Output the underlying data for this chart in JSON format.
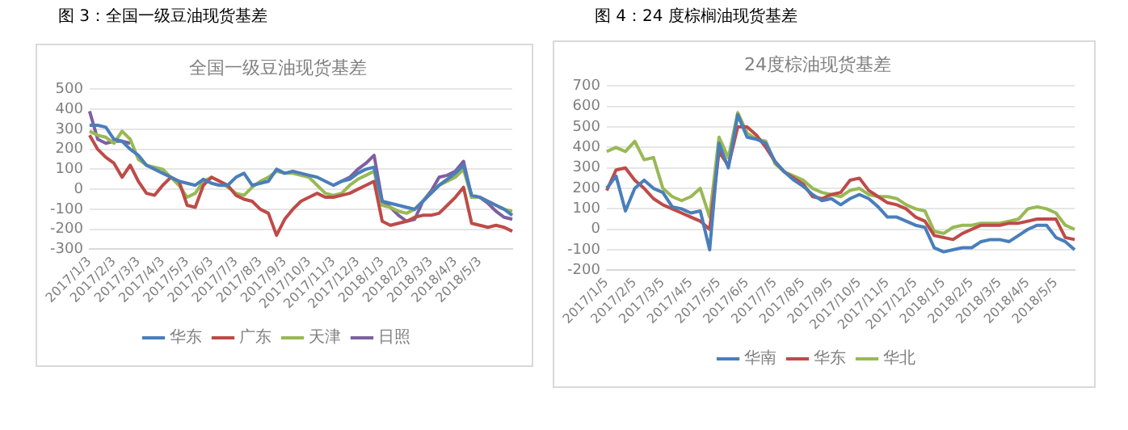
{
  "chart_data": [
    {
      "type": "line",
      "title": "全国一级豆油现货基差",
      "annotations": [
        "图 3：全国一级豆油现货基差"
      ],
      "categories": [
        "2017/1/3",
        null,
        null,
        "2017/2/3",
        null,
        null,
        "2017/3/3",
        null,
        null,
        "2017/4/3",
        null,
        null,
        "2017/5/3",
        null,
        null,
        "2017/6/3",
        null,
        null,
        "2017/7/3",
        null,
        null,
        "2017/8/3",
        null,
        null,
        "2017/9/3",
        null,
        null,
        "2017/10/3",
        null,
        null,
        "2017/11/3",
        null,
        null,
        "2017/12/3",
        null,
        null,
        "2018/1/3",
        null,
        null,
        "2018/2/3",
        null,
        null,
        "2018/3/3",
        null,
        null,
        "2018/4/3",
        null,
        null,
        "2018/5/3",
        null,
        null,
        null,
        null
      ],
      "series": [
        {
          "name": "华东",
          "color": "#4a7ebb",
          "values": [
            320,
            320,
            310,
            250,
            240,
            200,
            170,
            120,
            100,
            80,
            60,
            40,
            30,
            20,
            50,
            30,
            20,
            20,
            60,
            80,
            20,
            30,
            40,
            100,
            80,
            90,
            80,
            70,
            60,
            40,
            20,
            40,
            50,
            80,
            100,
            110,
            -60,
            -70,
            -80,
            -90,
            -100,
            -60,
            -20,
            20,
            50,
            80,
            120,
            -30,
            -40,
            -60,
            -80,
            -100,
            -130
          ]
        },
        {
          "name": "广东",
          "color": "#be4b48",
          "values": [
            270,
            200,
            160,
            130,
            60,
            120,
            40,
            -20,
            -30,
            20,
            60,
            40,
            -80,
            -90,
            20,
            60,
            40,
            20,
            -30,
            -50,
            -60,
            -100,
            -120,
            -230,
            -150,
            -100,
            -60,
            -40,
            -20,
            -40,
            -40,
            -30,
            -20,
            0,
            20,
            40,
            -160,
            -180,
            -170,
            -160,
            -140,
            -130,
            -130,
            -120,
            -80,
            -40,
            10,
            -170,
            -180,
            -190,
            -180,
            -190,
            -210
          ]
        },
        {
          "name": "天津",
          "color": "#98b954",
          "values": [
            290,
            270,
            260,
            230,
            290,
            250,
            150,
            120,
            110,
            100,
            60,
            20,
            -40,
            -20,
            40,
            60,
            40,
            10,
            -20,
            -30,
            10,
            40,
            60,
            90,
            80,
            80,
            70,
            60,
            20,
            -20,
            -30,
            -20,
            20,
            50,
            70,
            90,
            -80,
            -90,
            -110,
            -120,
            -100,
            -60,
            -20,
            20,
            40,
            60,
            100,
            -40,
            -40,
            -60,
            -80,
            -100,
            -110
          ]
        },
        {
          "name": "日照",
          "color": "#7d60a0",
          "values": [
            390,
            250,
            230,
            240,
            240,
            230,
            null,
            null,
            null,
            null,
            null,
            null,
            null,
            null,
            null,
            null,
            null,
            null,
            null,
            null,
            null,
            null,
            null,
            null,
            null,
            null,
            null,
            null,
            null,
            null,
            20,
            40,
            60,
            100,
            130,
            170,
            -60,
            -90,
            -130,
            -160,
            -150,
            -60,
            -10,
            60,
            70,
            90,
            140,
            -40,
            -40,
            -70,
            -110,
            -140,
            -150
          ]
        }
      ],
      "ylim": [
        -300,
        500
      ],
      "yticks": [
        -300,
        -200,
        -100,
        0,
        100,
        200,
        300,
        400,
        500
      ],
      "grid": "y",
      "legend": "bottom",
      "marker": "none"
    },
    {
      "type": "line",
      "title": "24度棕油现货基差",
      "annotations": [
        "图 4：24 度棕榈油现货基差"
      ],
      "categories": [
        "2017/1/5",
        null,
        null,
        "2017/2/5",
        null,
        null,
        "2017/3/5",
        null,
        null,
        "2017/4/5",
        null,
        null,
        "2017/5/5",
        null,
        null,
        "2017/6/5",
        null,
        null,
        "2017/7/5",
        null,
        null,
        "2017/8/5",
        null,
        null,
        "2017/9/5",
        null,
        null,
        "2017/10/5",
        null,
        null,
        "2017/11/5",
        null,
        null,
        "2017/12/5",
        null,
        null,
        "2018/1/5",
        null,
        null,
        "2018/2/5",
        null,
        null,
        "2018/3/5",
        null,
        null,
        "2018/4/5",
        null,
        null,
        "2018/5/5",
        null,
        null
      ],
      "series": [
        {
          "name": "华南",
          "color": "#4a7ebb",
          "values": [
            200,
            260,
            90,
            200,
            240,
            200,
            180,
            110,
            100,
            80,
            90,
            -100,
            420,
            300,
            560,
            450,
            440,
            420,
            330,
            280,
            240,
            210,
            170,
            140,
            150,
            120,
            150,
            170,
            150,
            110,
            60,
            60,
            40,
            20,
            10,
            -90,
            -110,
            -100,
            -90,
            -90,
            -60,
            -50,
            -50,
            -60,
            -30,
            0,
            20,
            20,
            -40,
            -60,
            -100
          ]
        },
        {
          "name": "华东",
          "color": "#be4b48",
          "values": [
            190,
            290,
            300,
            240,
            200,
            150,
            120,
            100,
            80,
            60,
            40,
            0,
            380,
            310,
            500,
            500,
            460,
            400,
            330,
            280,
            250,
            220,
            160,
            150,
            170,
            180,
            240,
            250,
            190,
            160,
            130,
            120,
            100,
            60,
            40,
            -30,
            -40,
            -50,
            -20,
            0,
            20,
            20,
            20,
            30,
            30,
            40,
            50,
            50,
            50,
            -40,
            -50
          ]
        },
        {
          "name": "华北",
          "color": "#98b954",
          "values": [
            380,
            400,
            380,
            430,
            340,
            350,
            200,
            160,
            140,
            160,
            200,
            60,
            450,
            350,
            570,
            470,
            440,
            430,
            320,
            280,
            260,
            240,
            200,
            180,
            170,
            160,
            190,
            200,
            170,
            160,
            160,
            150,
            120,
            100,
            90,
            -10,
            -20,
            10,
            20,
            20,
            30,
            30,
            30,
            40,
            50,
            100,
            110,
            100,
            80,
            20,
            0
          ]
        }
      ],
      "ylim": [
        -200,
        700
      ],
      "yticks": [
        -200,
        -100,
        0,
        100,
        200,
        300,
        400,
        500,
        600,
        700
      ],
      "grid": "y",
      "legend": "bottom",
      "marker": "none"
    }
  ]
}
